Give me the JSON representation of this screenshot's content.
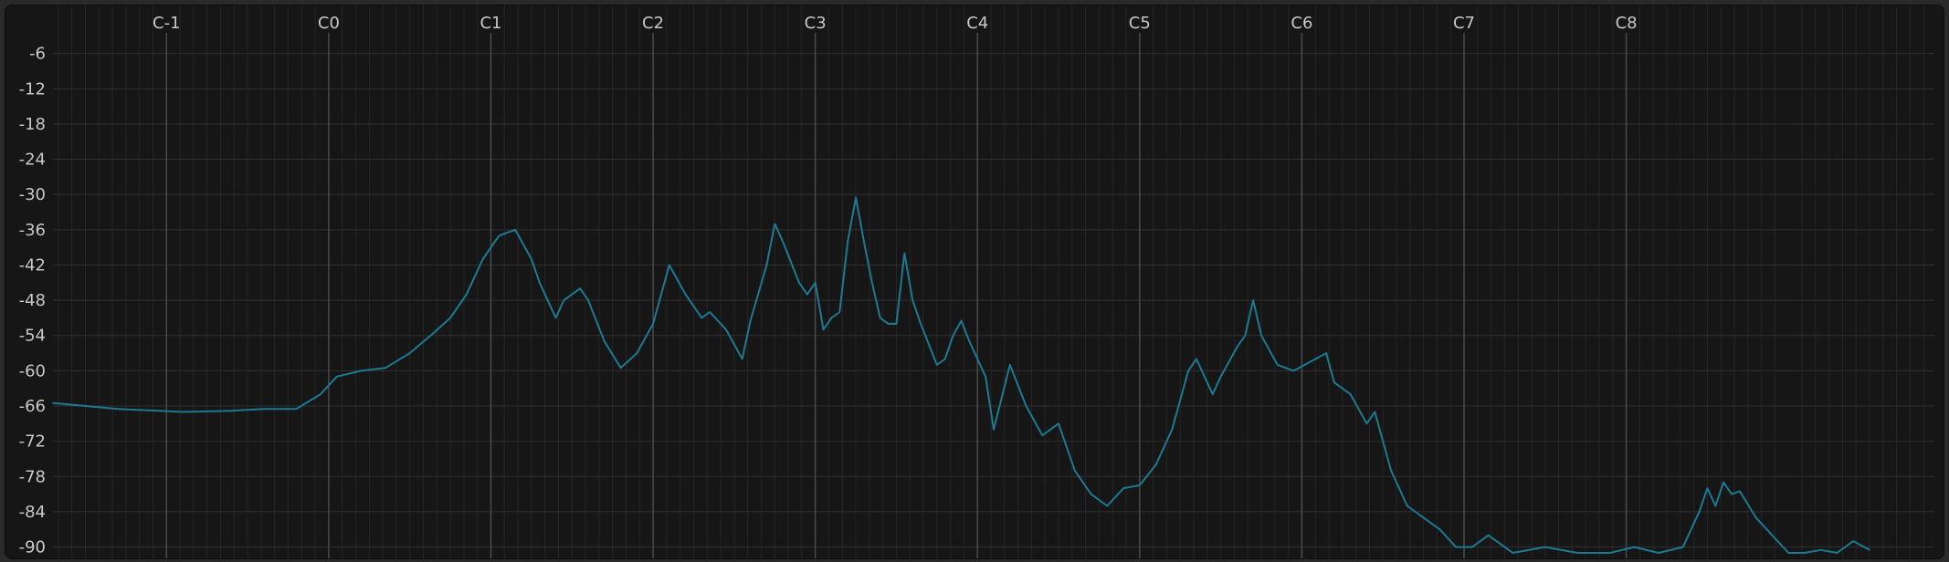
{
  "chart_data": {
    "type": "line",
    "title": "",
    "xlabel": "",
    "ylabel": "",
    "x_scale": "log",
    "x_tick_labels": [
      "C-1",
      "C0",
      "C1",
      "C2",
      "C3",
      "C4",
      "C5",
      "C6",
      "C7",
      "C8"
    ],
    "x_tick_values": [
      -1,
      0,
      1,
      2,
      3,
      4,
      5,
      6,
      7,
      8
    ],
    "xlim": [
      -1.7,
      9.9
    ],
    "y_tick_labels": [
      "-6",
      "-12",
      "-18",
      "-24",
      "-30",
      "-36",
      "-42",
      "-48",
      "-54",
      "-60",
      "-66",
      "-72",
      "-78",
      "-84",
      "-90"
    ],
    "y_tick_values": [
      -6,
      -12,
      -18,
      -24,
      -30,
      -36,
      -42,
      -48,
      -54,
      -60,
      -66,
      -72,
      -78,
      -84,
      -90
    ],
    "ylim": [
      -91,
      0
    ],
    "grid": true,
    "series": [
      {
        "color": "#1c7a92",
        "x_unit": "octave",
        "x": [
          -1.7,
          -1.3,
          -0.9,
          -0.6,
          -0.4,
          -0.2,
          -0.05,
          0.05,
          0.2,
          0.35,
          0.5,
          0.65,
          0.75,
          0.85,
          0.95,
          1.05,
          1.15,
          1.25,
          1.3,
          1.4,
          1.45,
          1.55,
          1.6,
          1.7,
          1.8,
          1.9,
          2.0,
          2.1,
          2.2,
          2.3,
          2.35,
          2.45,
          2.55,
          2.6,
          2.7,
          2.75,
          2.8,
          2.9,
          2.95,
          3.0,
          3.05,
          3.1,
          3.15,
          3.2,
          3.25,
          3.3,
          3.35,
          3.4,
          3.45,
          3.5,
          3.55,
          3.6,
          3.65,
          3.75,
          3.8,
          3.85,
          3.9,
          3.95,
          4.05,
          4.1,
          4.2,
          4.3,
          4.4,
          4.5,
          4.6,
          4.7,
          4.8,
          4.9,
          5.0,
          5.1,
          5.2,
          5.3,
          5.35,
          5.45,
          5.5,
          5.6,
          5.65,
          5.7,
          5.75,
          5.85,
          5.95,
          6.05,
          6.15,
          6.2,
          6.3,
          6.4,
          6.45,
          6.55,
          6.65,
          6.75,
          6.85,
          6.95,
          7.05,
          7.15,
          7.3,
          7.5,
          7.7,
          7.9,
          8.05,
          8.2,
          8.35,
          8.45,
          8.5,
          8.55,
          8.6,
          8.65,
          8.7,
          8.8,
          8.9,
          9.0,
          9.1,
          9.2,
          9.3,
          9.4,
          9.5
        ],
        "y": [
          -65.5,
          -66.5,
          -67,
          -66.8,
          -66.5,
          -66.5,
          -64,
          -61,
          -60,
          -59.5,
          -57,
          -53.5,
          -51,
          -47,
          -41,
          -37,
          -36,
          -41,
          -45,
          -51,
          -48,
          -46,
          -48,
          -55,
          -59.5,
          -57,
          -52,
          -42,
          -47,
          -51,
          -50,
          -53,
          -58,
          -51.5,
          -42,
          -35,
          -38,
          -45,
          -47,
          -45,
          -53,
          -51,
          -50,
          -38,
          -30.5,
          -38,
          -45,
          -51,
          -52,
          -52,
          -40,
          -48,
          -52,
          -59,
          -58,
          -54,
          -51.5,
          -55,
          -61,
          -70,
          -59,
          -66,
          -71,
          -69,
          -77,
          -81,
          -83,
          -80,
          -79.5,
          -76,
          -70,
          -60,
          -58,
          -64,
          -61,
          -56,
          -54,
          -48,
          -54,
          -59,
          -60,
          -58.5,
          -57,
          -62,
          -64,
          -69,
          -67,
          -77,
          -83,
          -85,
          -87,
          -90,
          -90,
          -88,
          -91,
          -90,
          -91,
          -91,
          -90,
          -91,
          -90,
          -84,
          -80,
          -83,
          -79,
          -81,
          -80.5,
          -85,
          -88,
          -91,
          -91,
          -90.5,
          -91,
          -89,
          -90.5
        ]
      }
    ]
  }
}
